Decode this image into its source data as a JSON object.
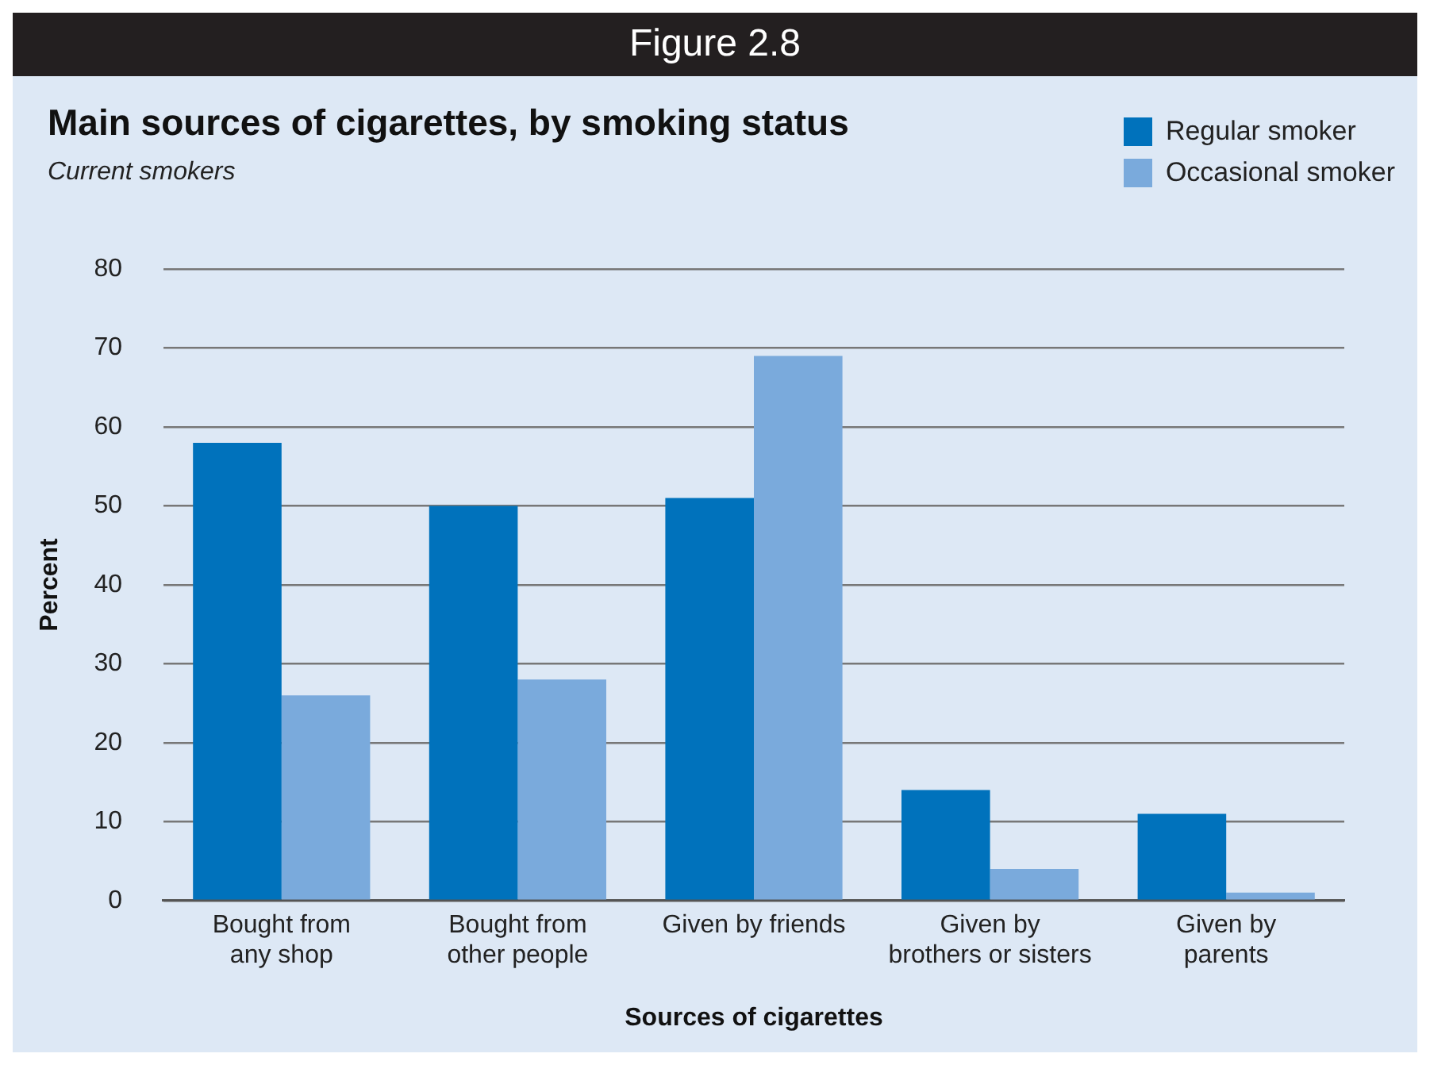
{
  "chart_data": {
    "type": "bar",
    "title": "Main sources of cigarettes, by smoking status",
    "subtitle": "Current smokers",
    "annotations": [
      "Figure 2.8"
    ],
    "xlabel": "Sources of cigarettes",
    "ylabel": "Percent",
    "categories": [
      "Bought from\nany shop",
      "Bought from\nother people",
      "Given by friends",
      "Given by\nbrothers or sisters",
      "Given by\nparents"
    ],
    "series": [
      {
        "name": "Regular smoker",
        "color": "#0072bc",
        "values": [
          58,
          50,
          51,
          14,
          11
        ]
      },
      {
        "name": "Occasional smoker",
        "color": "#7aaadc",
        "values": [
          26,
          28,
          69,
          4,
          1
        ]
      }
    ],
    "ylim": [
      0,
      80
    ],
    "yticks": [
      0,
      10,
      20,
      30,
      40,
      50,
      60,
      70,
      80
    ],
    "grid": "y",
    "legend": "top right"
  }
}
